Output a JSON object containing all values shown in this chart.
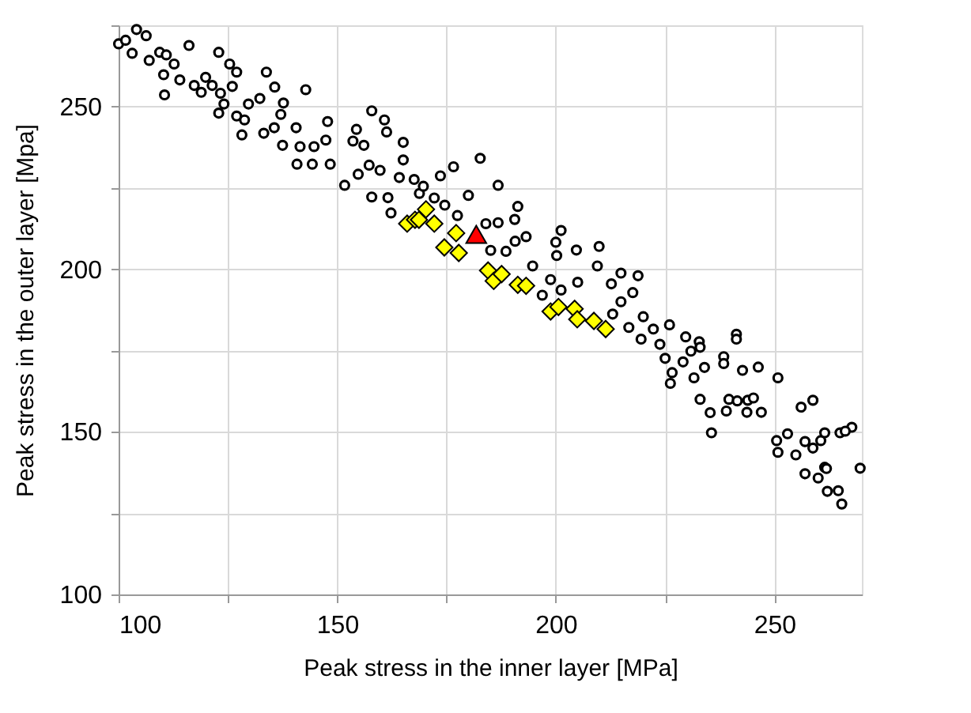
{
  "chart_data": {
    "type": "scatter",
    "xlabel": "Peak stress in the inner layer [MPa]",
    "ylabel": "Peak stress in the outer layer [Mpa]",
    "xlim": [
      100,
      270
    ],
    "xticks": [
      100,
      {
        "value": 125,
        "label": null
      },
      150,
      {
        "value": 175,
        "label": null
      },
      200,
      {
        "value": 225,
        "label": null
      },
      250
    ],
    "ylim": [
      100,
      275
    ],
    "yticks": [
      100,
      {
        "value": 125,
        "label": null
      },
      150,
      {
        "value": 175,
        "label": null
      },
      200,
      {
        "value": 225,
        "label": null
      },
      250,
      {
        "value": 275,
        "label": null
      }
    ],
    "grid": true,
    "series": [
      {
        "color": "#000000",
        "marker": "circle",
        "x": [
          100,
          101.6,
          104.1,
          103.1,
          106.3,
          107,
          109.4,
          110.9,
          110.3,
          112.7,
          110.5,
          114,
          116.1,
          117.3,
          118.9,
          119.9,
          121.4,
          122.9,
          123.3,
          122.9,
          124.1,
          125.4,
          126,
          127,
          127,
          128.2,
          129.7,
          128.8,
          132.3,
          133.8,
          133.2,
          135.7,
          137.7,
          135.6,
          137.1,
          137.5,
          140.6,
          140.8,
          141.5,
          142.8,
          144.3,
          144.7,
          147.4,
          147.8,
          148.4,
          151.7,
          153.6,
          154.4,
          154.8,
          156.1,
          157.3,
          157.9,
          157.9,
          159.8,
          160.8,
          161.3,
          161.6,
          162.3,
          164.2,
          165.1,
          165.1,
          167.6,
          168.8,
          169.7,
          172.2,
          173.6,
          174.6,
          176.6,
          177.5,
          180,
          182.7,
          184,
          185.1,
          186.8,
          186.8,
          188.6,
          190.6,
          191.3,
          190.7,
          193.2,
          194.7,
          196.9,
          198.8,
          200,
          200.2,
          201.2,
          201.2,
          204.7,
          205,
          209.5,
          209.9,
          212.7,
          213,
          214.9,
          214.9,
          217.6,
          218.8,
          216.7,
          219.5,
          220,
          222.3,
          223.8,
          226,
          225,
          226.6,
          226.2,
          229.1,
          229.7,
          230.9,
          232.8,
          233,
          231.6,
          234,
          233,
          235.3,
          235.6,
          238.4,
          238.4,
          241.3,
          241.3,
          239.6,
          239,
          242.7,
          241.5,
          243.9,
          245.2,
          243.7,
          246.3,
          247,
          250.8,
          250.5,
          250.8,
          253,
          254.9,
          256.1,
          257,
          257,
          258.8,
          258.8,
          260.6,
          260,
          261.5,
          261.5,
          262.1,
          261.9,
          264.6,
          265.4,
          265,
          267.7,
          266.2,
          269.6
        ],
        "values": [
          269.3,
          270.4,
          273.7,
          266.4,
          271.8,
          264.2,
          266.7,
          265.9,
          259.8,
          263.1,
          253.6,
          258.2,
          268.8,
          256.5,
          254.4,
          259,
          256.5,
          266.7,
          254.1,
          248,
          250.8,
          263.1,
          256.2,
          260.6,
          247.1,
          241.3,
          250.8,
          245.9,
          252.5,
          260.6,
          241.8,
          256,
          251.1,
          243.5,
          247.6,
          238.1,
          243.5,
          232.3,
          237.7,
          255.2,
          232.3,
          237.7,
          239.7,
          245.4,
          232.3,
          225.8,
          239.4,
          243,
          229.2,
          238.1,
          232,
          248.7,
          222.2,
          230.4,
          245.9,
          242.2,
          222,
          217.3,
          228.2,
          239,
          233.6,
          227.6,
          223.3,
          225.5,
          221.9,
          228.7,
          219.7,
          231.5,
          216.5,
          222.7,
          234.1,
          214,
          205.8,
          225.8,
          214.3,
          205.5,
          215.3,
          219.3,
          208.6,
          210,
          201,
          192,
          196.8,
          208.3,
          204.2,
          211.9,
          193.6,
          205.9,
          196,
          201,
          207,
          195.5,
          186.2,
          198.8,
          190,
          192.8,
          198,
          182.1,
          178.5,
          185.4,
          181.6,
          176.9,
          182.9,
          172.6,
          168.2,
          164.9,
          171.5,
          179.2,
          174.8,
          177.7,
          176,
          166.6,
          169.8,
          160,
          155.9,
          149.7,
          173.1,
          171,
          180,
          178.5,
          160,
          156.4,
          168.9,
          159.5,
          159.7,
          160.4,
          156,
          169.9,
          156,
          166.6,
          147.3,
          143.7,
          149.4,
          142.9,
          157.6,
          147,
          137.1,
          159.7,
          145,
          147.3,
          135.8,
          149.7,
          139.1,
          131.7,
          138.7,
          131.9,
          127.8,
          149.7,
          151.4,
          150.2,
          138.8
        ]
      },
      {
        "color": "#ffff00",
        "marker": "diamond",
        "x": [
          166,
          167.8,
          168.7,
          170.3,
          172.2,
          174.5,
          177.2,
          177.8,
          184.5,
          185.8,
          187.6,
          191.3,
          193.2,
          198.8,
          200.6,
          204.3,
          204.9,
          208.7,
          211.4
        ],
        "values": [
          214,
          215.2,
          215.2,
          218.4,
          214,
          206.7,
          211.1,
          205,
          199.6,
          196.4,
          198.5,
          195.2,
          194.9,
          187,
          188.4,
          187.8,
          184.6,
          184.1,
          181.6
        ]
      },
      {
        "color": "#ff0000",
        "marker": "triangle",
        "x": [
          181.8
        ],
        "values": [
          210.7
        ]
      }
    ]
  }
}
